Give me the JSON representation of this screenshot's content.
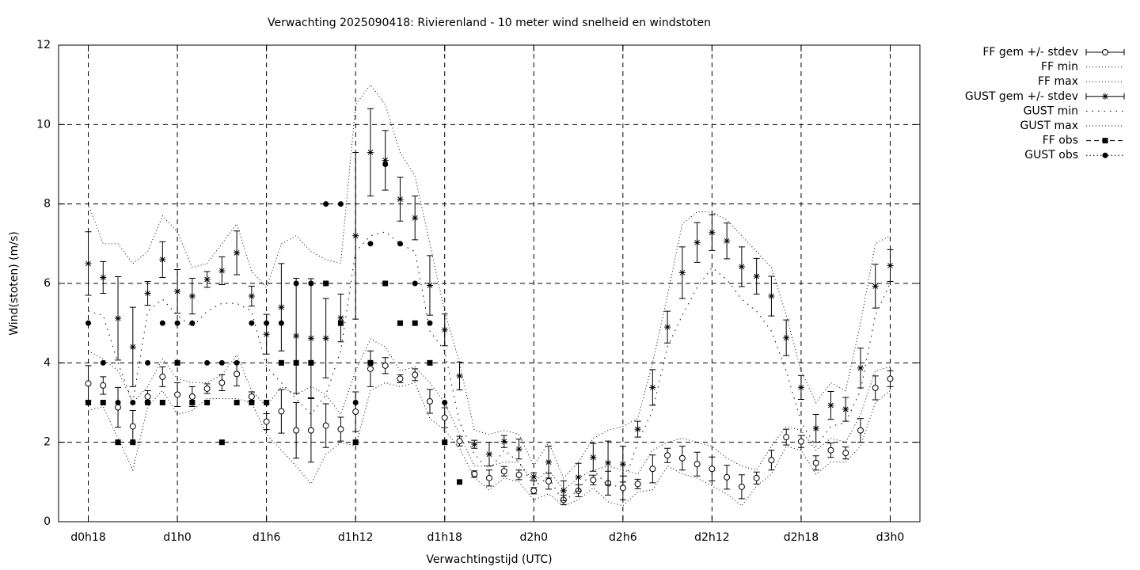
{
  "chart_data": {
    "type": "errorbar",
    "title": "Verwachting 2025090418: Rivierenland - 10 meter wind snelheid en windstoten",
    "x_label": "Verwachtingstijd (UTC)",
    "y_label": "Wind(stoten) (m/s)",
    "xlim": [
      -2,
      56
    ],
    "ylim": [
      0,
      12
    ],
    "xticks": [
      {
        "value": 0,
        "label": "d0h18"
      },
      {
        "value": 6,
        "label": "d1h0"
      },
      {
        "value": 12,
        "label": "d1h6"
      },
      {
        "value": 18,
        "label": "d1h12"
      },
      {
        "value": 24,
        "label": "d1h18"
      },
      {
        "value": 30,
        "label": "d2h0"
      },
      {
        "value": 36,
        "label": "d2h6"
      },
      {
        "value": 42,
        "label": "d2h12"
      },
      {
        "value": 48,
        "label": "d2h18"
      },
      {
        "value": 54,
        "label": "d3h0"
      }
    ],
    "yticks": [
      0,
      2,
      4,
      6,
      8,
      10,
      12
    ],
    "grid": true,
    "legend": "outside-right",
    "x": [
      0,
      1,
      2,
      3,
      4,
      5,
      6,
      7,
      8,
      9,
      10,
      11,
      12,
      13,
      14,
      15,
      16,
      17,
      18,
      19,
      20,
      21,
      22,
      23,
      24,
      25,
      26,
      27,
      28,
      29,
      30,
      31,
      32,
      33,
      34,
      35,
      36,
      37,
      38,
      39,
      40,
      41,
      42,
      43,
      44,
      45,
      46,
      47,
      48,
      49,
      50,
      51,
      52,
      53,
      54
    ],
    "series": [
      {
        "name": "FF gem +/- stdev",
        "color": "#000000",
        "style": "errorbar",
        "marker": "circle-open",
        "values": [
          3.48,
          3.43,
          2.88,
          2.4,
          3.15,
          3.65,
          3.2,
          3.15,
          3.35,
          3.5,
          3.72,
          3.15,
          2.52,
          2.78,
          2.3,
          2.3,
          2.42,
          2.33,
          2.77,
          3.85,
          3.93,
          3.6,
          3.7,
          3.03,
          2.62,
          2.03,
          1.2,
          1.1,
          1.27,
          1.18,
          0.78,
          1.02,
          0.55,
          0.78,
          1.05,
          0.97,
          0.85,
          0.95,
          1.33,
          1.67,
          1.6,
          1.45,
          1.33,
          1.12,
          0.88,
          1.1,
          1.55,
          2.13,
          2.02,
          1.48,
          1.8,
          1.73,
          2.3,
          3.37,
          3.6
        ],
        "errors": [
          0.45,
          0.22,
          0.5,
          0.4,
          0.15,
          0.25,
          0.3,
          0.25,
          0.12,
          0.2,
          0.3,
          0.12,
          0.2,
          0.55,
          0.7,
          0.8,
          0.55,
          0.3,
          0.5,
          0.45,
          0.2,
          0.1,
          0.15,
          0.3,
          0.25,
          0.12,
          0.08,
          0.2,
          0.12,
          0.12,
          0.08,
          0.2,
          0.12,
          0.15,
          0.12,
          0.3,
          0.3,
          0.12,
          0.35,
          0.18,
          0.3,
          0.3,
          0.3,
          0.3,
          0.3,
          0.15,
          0.25,
          0.2,
          0.15,
          0.18,
          0.18,
          0.15,
          0.3,
          0.3,
          0.2
        ]
      },
      {
        "name": "FF min",
        "color": "#000000",
        "style": "dotted",
        "marker": "none",
        "values": [
          2.8,
          2.9,
          2.1,
          1.3,
          2.9,
          3.3,
          2.7,
          2.8,
          3.1,
          3.1,
          3.1,
          3.0,
          2.2,
          1.8,
          1.4,
          0.95,
          1.7,
          2.0,
          1.9,
          3.3,
          3.5,
          3.4,
          3.5,
          2.6,
          2.3,
          1.85,
          1.1,
          0.8,
          1.1,
          1.0,
          0.55,
          0.7,
          0.4,
          0.55,
          0.85,
          0.5,
          0.4,
          0.75,
          0.8,
          1.4,
          1.2,
          1.1,
          0.9,
          0.7,
          0.4,
          0.9,
          1.2,
          1.9,
          1.8,
          1.2,
          1.5,
          1.5,
          1.9,
          3.0,
          3.3
        ]
      },
      {
        "name": "FF max",
        "color": "#000000",
        "style": "dotted",
        "marker": "none",
        "values": [
          4.3,
          4.1,
          3.8,
          3.0,
          3.4,
          4.1,
          3.6,
          3.5,
          3.5,
          3.7,
          4.2,
          3.3,
          2.9,
          3.4,
          3.2,
          3.4,
          3.2,
          2.7,
          3.8,
          4.6,
          4.4,
          3.8,
          3.9,
          3.5,
          3.0,
          2.2,
          1.4,
          1.4,
          1.5,
          1.5,
          1.0,
          1.3,
          0.8,
          1.1,
          1.3,
          1.4,
          1.3,
          1.2,
          1.8,
          2.0,
          2.1,
          2.0,
          1.9,
          1.6,
          1.4,
          1.3,
          1.9,
          2.4,
          2.3,
          1.8,
          2.1,
          2.0,
          2.7,
          3.8,
          3.9
        ]
      },
      {
        "name": "GUST gem +/- stdev",
        "color": "#000000",
        "style": "errorbar",
        "marker": "star",
        "values": [
          6.5,
          6.15,
          5.12,
          4.4,
          5.75,
          6.6,
          5.8,
          5.68,
          6.1,
          6.32,
          6.77,
          5.68,
          4.72,
          5.4,
          4.68,
          4.62,
          4.62,
          5.13,
          7.2,
          9.3,
          9.1,
          8.12,
          7.65,
          5.95,
          4.83,
          3.67,
          1.95,
          1.7,
          2.02,
          1.83,
          1.13,
          1.5,
          0.78,
          1.12,
          1.62,
          1.48,
          1.45,
          2.33,
          3.38,
          4.9,
          6.27,
          7.03,
          7.28,
          7.07,
          6.42,
          6.18,
          5.68,
          4.63,
          3.38,
          2.35,
          2.93,
          2.83,
          3.87,
          5.93,
          6.45
        ],
        "errors": [
          0.8,
          0.4,
          1.05,
          1.0,
          0.3,
          0.45,
          0.55,
          0.45,
          0.2,
          0.35,
          0.55,
          0.25,
          0.5,
          1.1,
          1.45,
          1.5,
          1.0,
          0.6,
          2.1,
          1.1,
          0.75,
          0.55,
          0.55,
          0.75,
          0.4,
          0.35,
          0.1,
          0.3,
          0.15,
          0.25,
          0.1,
          0.4,
          0.25,
          0.35,
          0.35,
          0.55,
          0.45,
          0.2,
          0.45,
          0.4,
          0.65,
          0.5,
          0.45,
          0.45,
          0.5,
          0.45,
          0.5,
          0.45,
          0.3,
          0.35,
          0.35,
          0.3,
          0.5,
          0.55,
          0.4
        ]
      },
      {
        "name": "GUST min",
        "color": "#000000",
        "style": "dotted-sparse",
        "marker": "none",
        "values": [
          5.3,
          5.2,
          4.0,
          3.0,
          5.3,
          5.6,
          5.2,
          4.9,
          5.3,
          5.5,
          5.5,
          5.3,
          3.9,
          3.5,
          3.1,
          2.7,
          3.2,
          4.3,
          6.8,
          7.2,
          7.3,
          7.0,
          6.8,
          4.8,
          4.3,
          2.5,
          1.7,
          1.3,
          1.8,
          1.5,
          0.9,
          1.1,
          0.5,
          0.8,
          1.3,
          0.9,
          0.9,
          2.0,
          2.8,
          4.4,
          5.2,
          5.9,
          6.4,
          6.1,
          5.6,
          5.3,
          4.8,
          3.8,
          2.5,
          1.9,
          2.4,
          2.5,
          3.3,
          5.2,
          6.0
        ]
      },
      {
        "name": "GUST max",
        "color": "#000000",
        "style": "dotted",
        "marker": "none",
        "values": [
          8.0,
          7.0,
          7.0,
          6.5,
          6.8,
          7.7,
          7.3,
          6.4,
          6.5,
          7.0,
          7.5,
          6.3,
          5.9,
          7.0,
          7.2,
          6.8,
          6.6,
          6.5,
          10.5,
          11.0,
          10.5,
          9.3,
          8.7,
          7.0,
          5.3,
          4.0,
          2.3,
          2.2,
          2.3,
          2.2,
          1.4,
          2.0,
          1.1,
          1.5,
          2.1,
          2.3,
          2.4,
          2.6,
          4.0,
          5.7,
          7.5,
          7.8,
          7.8,
          7.6,
          7.2,
          6.8,
          6.4,
          5.2,
          3.8,
          3.0,
          3.5,
          3.3,
          5.0,
          7.0,
          7.2
        ]
      },
      {
        "name": "FF obs",
        "color": "#000000",
        "style": "points-dashed",
        "marker": "square",
        "values": [
          3,
          3,
          2,
          2,
          3,
          3,
          4,
          3,
          3,
          2,
          3,
          3,
          3,
          4,
          4,
          4,
          6,
          5,
          2,
          4,
          6,
          5,
          5,
          4,
          2,
          1,
          null,
          null,
          null,
          null,
          null,
          null,
          null,
          null,
          null,
          null,
          null,
          null,
          null,
          null,
          null,
          null,
          null,
          null,
          null,
          null,
          null,
          null,
          null,
          null,
          null,
          null,
          null,
          null,
          null
        ]
      },
      {
        "name": "GUST obs",
        "color": "#000000",
        "style": "points-dotted",
        "marker": "dot",
        "values": [
          5,
          4,
          3,
          3,
          4,
          5,
          5,
          5,
          4,
          4,
          4,
          5,
          5,
          5,
          6,
          6,
          8,
          8,
          3,
          7,
          9,
          7,
          6,
          5,
          3,
          null,
          null,
          null,
          null,
          null,
          null,
          null,
          null,
          null,
          null,
          null,
          null,
          null,
          null,
          null,
          null,
          null,
          null,
          null,
          null,
          null,
          null,
          null,
          null,
          null,
          null,
          null,
          null,
          null,
          null
        ]
      }
    ]
  }
}
